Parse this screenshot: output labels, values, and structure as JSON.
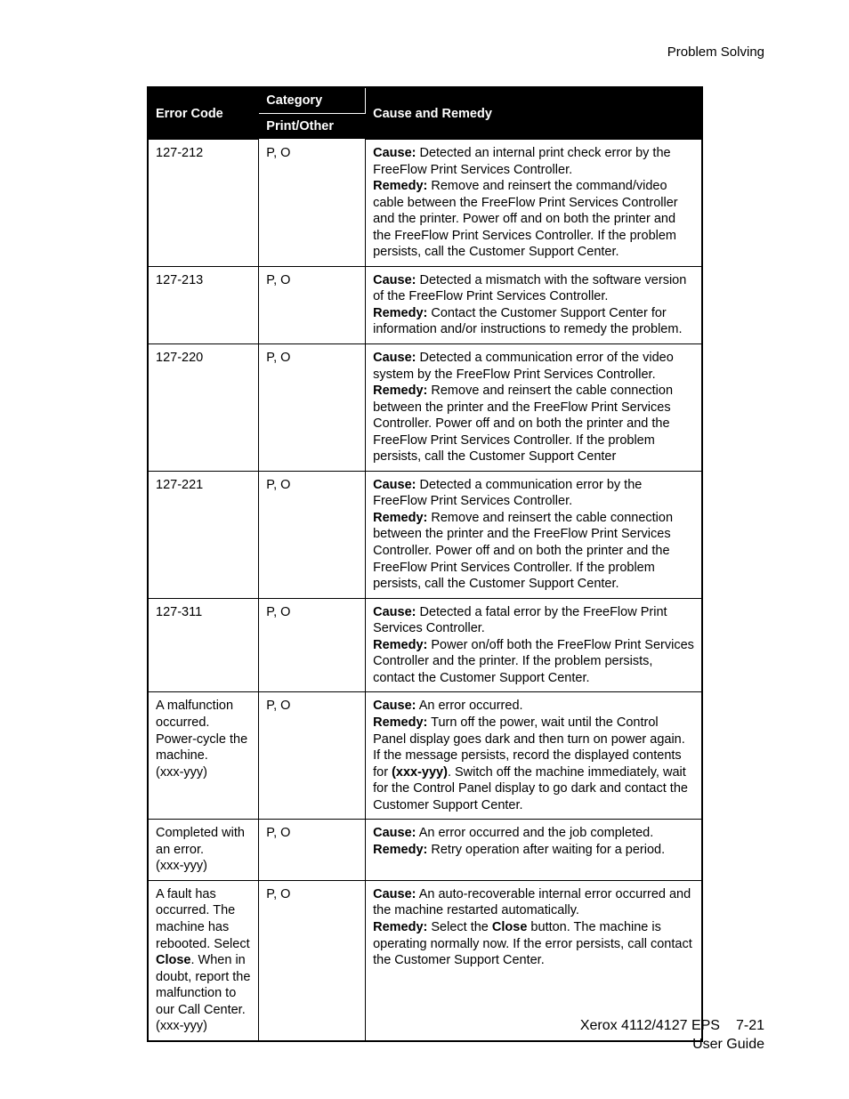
{
  "running_head": "Problem Solving",
  "header": {
    "error_code": "Error Code",
    "category": "Category",
    "print_other": "Print/Other",
    "cause_remedy": "Cause and Remedy"
  },
  "rows": [
    {
      "code": "127-212",
      "cat": "P, O",
      "cause": "Detected an internal print check error by the FreeFlow Print Services Controller.",
      "remedy": "Remove and reinsert the command/video cable between the FreeFlow Print Services Controller and the printer.  Power off and on both the printer and the FreeFlow Print Services Controller.  If the problem persists, call the Customer Support Center."
    },
    {
      "code": "127-213",
      "cat": "P, O",
      "cause": "Detected a mismatch with the software version of the FreeFlow Print Services Controller.",
      "remedy": "Contact the Customer Support Center for information and/or instructions to remedy the problem."
    },
    {
      "code": "127-220",
      "cat": "P, O",
      "cause": "Detected a communication error of the video system by the FreeFlow Print Services Controller.",
      "remedy": "Remove and reinsert the cable connection between the printer and the FreeFlow Print Services Controller. Power off and on both the printer and the FreeFlow Print Services Controller. If the problem persists, call the Customer Support Center"
    },
    {
      "code": "127-221",
      "cat": "P, O",
      "cause": "Detected a communication error by the FreeFlow Print Services Controller.",
      "remedy": "Remove and reinsert the cable connection between the printer and the FreeFlow Print Services Controller.  Power off and on both the printer and the FreeFlow Print Services Controller.  If the problem persists, call the Customer Support Center."
    },
    {
      "code": "127-311",
      "cat": "P, O",
      "cause": "Detected a fatal error by the FreeFlow Print Services Controller.",
      "remedy": "Power on/off both the FreeFlow Print Services Controller and the printer.  If the problem persists, contact the Customer Support Center."
    },
    {
      "code_html": "A malfunction occurred. Power-cycle the machine.<br>(xxx-yyy)",
      "cat": "P, O",
      "cause": "An error occurred.",
      "remedy_html": "Turn off the power, wait until the Control Panel display goes dark and then turn on power again.<br>If the message persists, record the displayed contents for <b>(xxx-yyy)</b>. Switch off the machine immediately, wait for the Control Panel display to go dark and contact the Customer Support Center."
    },
    {
      "code_html": "Completed with an error.<br>(xxx-yyy)",
      "cat": "P, O",
      "cause": "An error occurred and the job completed.",
      "remedy": "Retry operation after waiting for a period."
    },
    {
      "code_html": "A fault has occurred. The machine has rebooted. Select <b>Close</b>. When in doubt, report the malfunction to our Call Center.<br>(xxx-yyy)",
      "cat": "P, O",
      "cause": "An auto-recoverable internal error occurred and the machine restarted automatically.",
      "remedy_html": "Select the <b>Close</b> button. The machine is operating normally now. If the error persists, call contact the Customer Support Center."
    }
  ],
  "labels": {
    "cause": "Cause:",
    "remedy": "Remedy:"
  },
  "footer": {
    "line1": "Xerox 4112/4127 EPS",
    "line2": "User Guide",
    "page": "7-21"
  }
}
